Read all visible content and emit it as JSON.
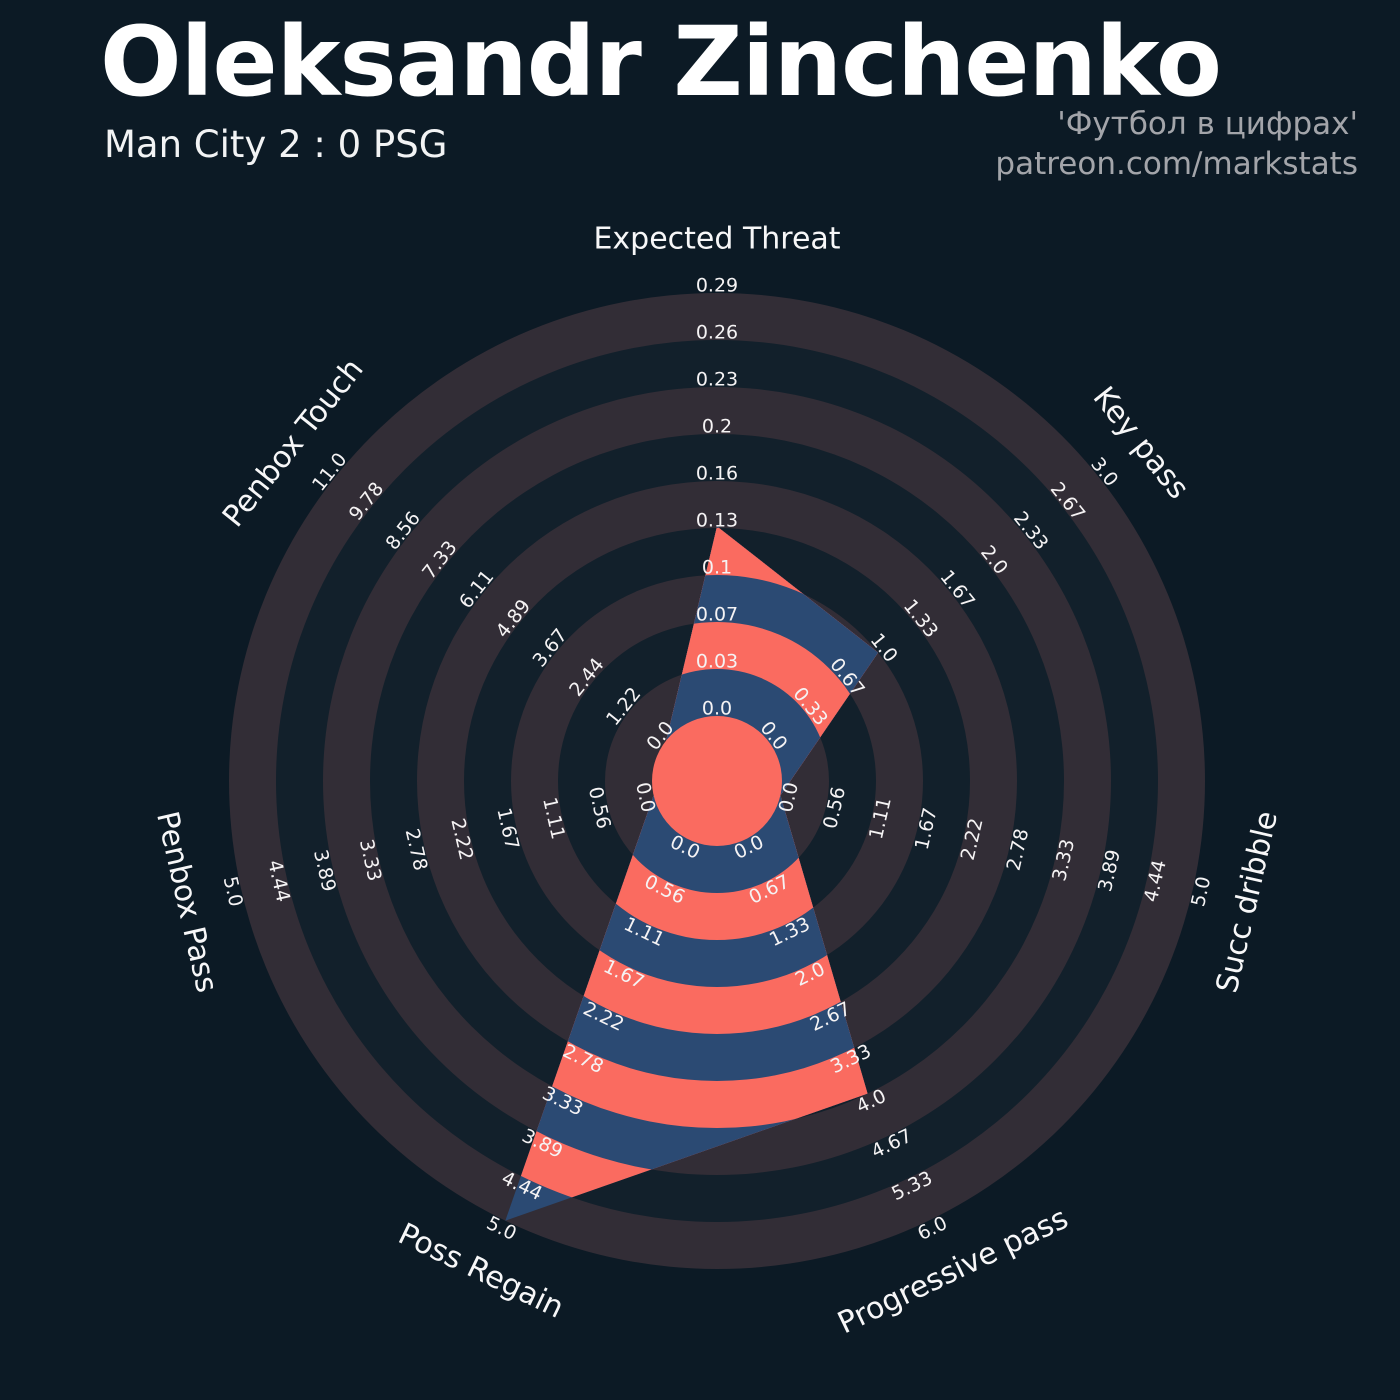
{
  "header": {
    "title": "Oleksandr Zinchenko",
    "subtitle": "Man City 2 : 0 PSG",
    "credit_line1": "'Футбол в цифрах'",
    "credit_line2": "patreon.com/markstats"
  },
  "chart_data": {
    "type": "radar",
    "title": "Oleksandr Zinchenko",
    "subtitle": "Man City 2 : 0 PSG",
    "rings": 9,
    "legend_position": "none",
    "grid": "concentric-rings",
    "axes": [
      {
        "label": "Expected Threat",
        "value": 0.13,
        "axis_min": 0.0,
        "axis_max": 0.29,
        "ticks": [
          "0.0",
          "0.03",
          "0.07",
          "0.1",
          "0.13",
          "0.16",
          "0.2",
          "0.23",
          "0.26",
          "0.29"
        ]
      },
      {
        "label": "Key pass",
        "value": 1.0,
        "axis_min": 0.0,
        "axis_max": 3.0,
        "ticks": [
          "0.0",
          "0.33",
          "0.67",
          "1.0",
          "1.33",
          "1.67",
          "2.0",
          "2.33",
          "2.67",
          "3.0"
        ]
      },
      {
        "label": "Succ dribble",
        "value": 0.0,
        "axis_min": 0.0,
        "axis_max": 5.0,
        "ticks": [
          "0.0",
          "0.56",
          "1.11",
          "1.67",
          "2.22",
          "2.78",
          "3.33",
          "3.89",
          "4.44",
          "5.0"
        ]
      },
      {
        "label": "Progressive pass",
        "value": 4.0,
        "axis_min": 0.0,
        "axis_max": 6.0,
        "ticks": [
          "0.0",
          "0.67",
          "1.33",
          "2.0",
          "2.67",
          "3.33",
          "4.0",
          "4.67",
          "5.33",
          "6.0"
        ]
      },
      {
        "label": "Poss Regain",
        "value": 5.0,
        "axis_min": 0.0,
        "axis_max": 5.0,
        "ticks": [
          "0.0",
          "0.56",
          "1.11",
          "1.67",
          "2.22",
          "2.78",
          "3.33",
          "3.89",
          "4.44",
          "5.0"
        ]
      },
      {
        "label": "Penbox Pass",
        "value": 0.0,
        "axis_min": 0.0,
        "axis_max": 5.0,
        "ticks": [
          "0.0",
          "0.56",
          "1.11",
          "1.67",
          "2.22",
          "2.78",
          "3.33",
          "3.89",
          "4.44",
          "5.0"
        ]
      },
      {
        "label": "Penbox Touch",
        "value": 0.0,
        "axis_min": 0.0,
        "axis_max": 11.0,
        "ticks": [
          "0.0",
          "1.22",
          "2.44",
          "3.67",
          "4.89",
          "6.11",
          "7.33",
          "8.56",
          "9.78",
          "11.0"
        ]
      }
    ],
    "colors": {
      "background": "#0C1A25",
      "ring_dark": "#12202B",
      "ring_light": "#322D36",
      "radar_fill_odd": "#2B4A73",
      "radar_fill_even": "#FA6B60",
      "center_circle": "#FA6B60",
      "tick_text": "#F5F3F4",
      "axis_title_text": "#F7F7F8"
    }
  }
}
